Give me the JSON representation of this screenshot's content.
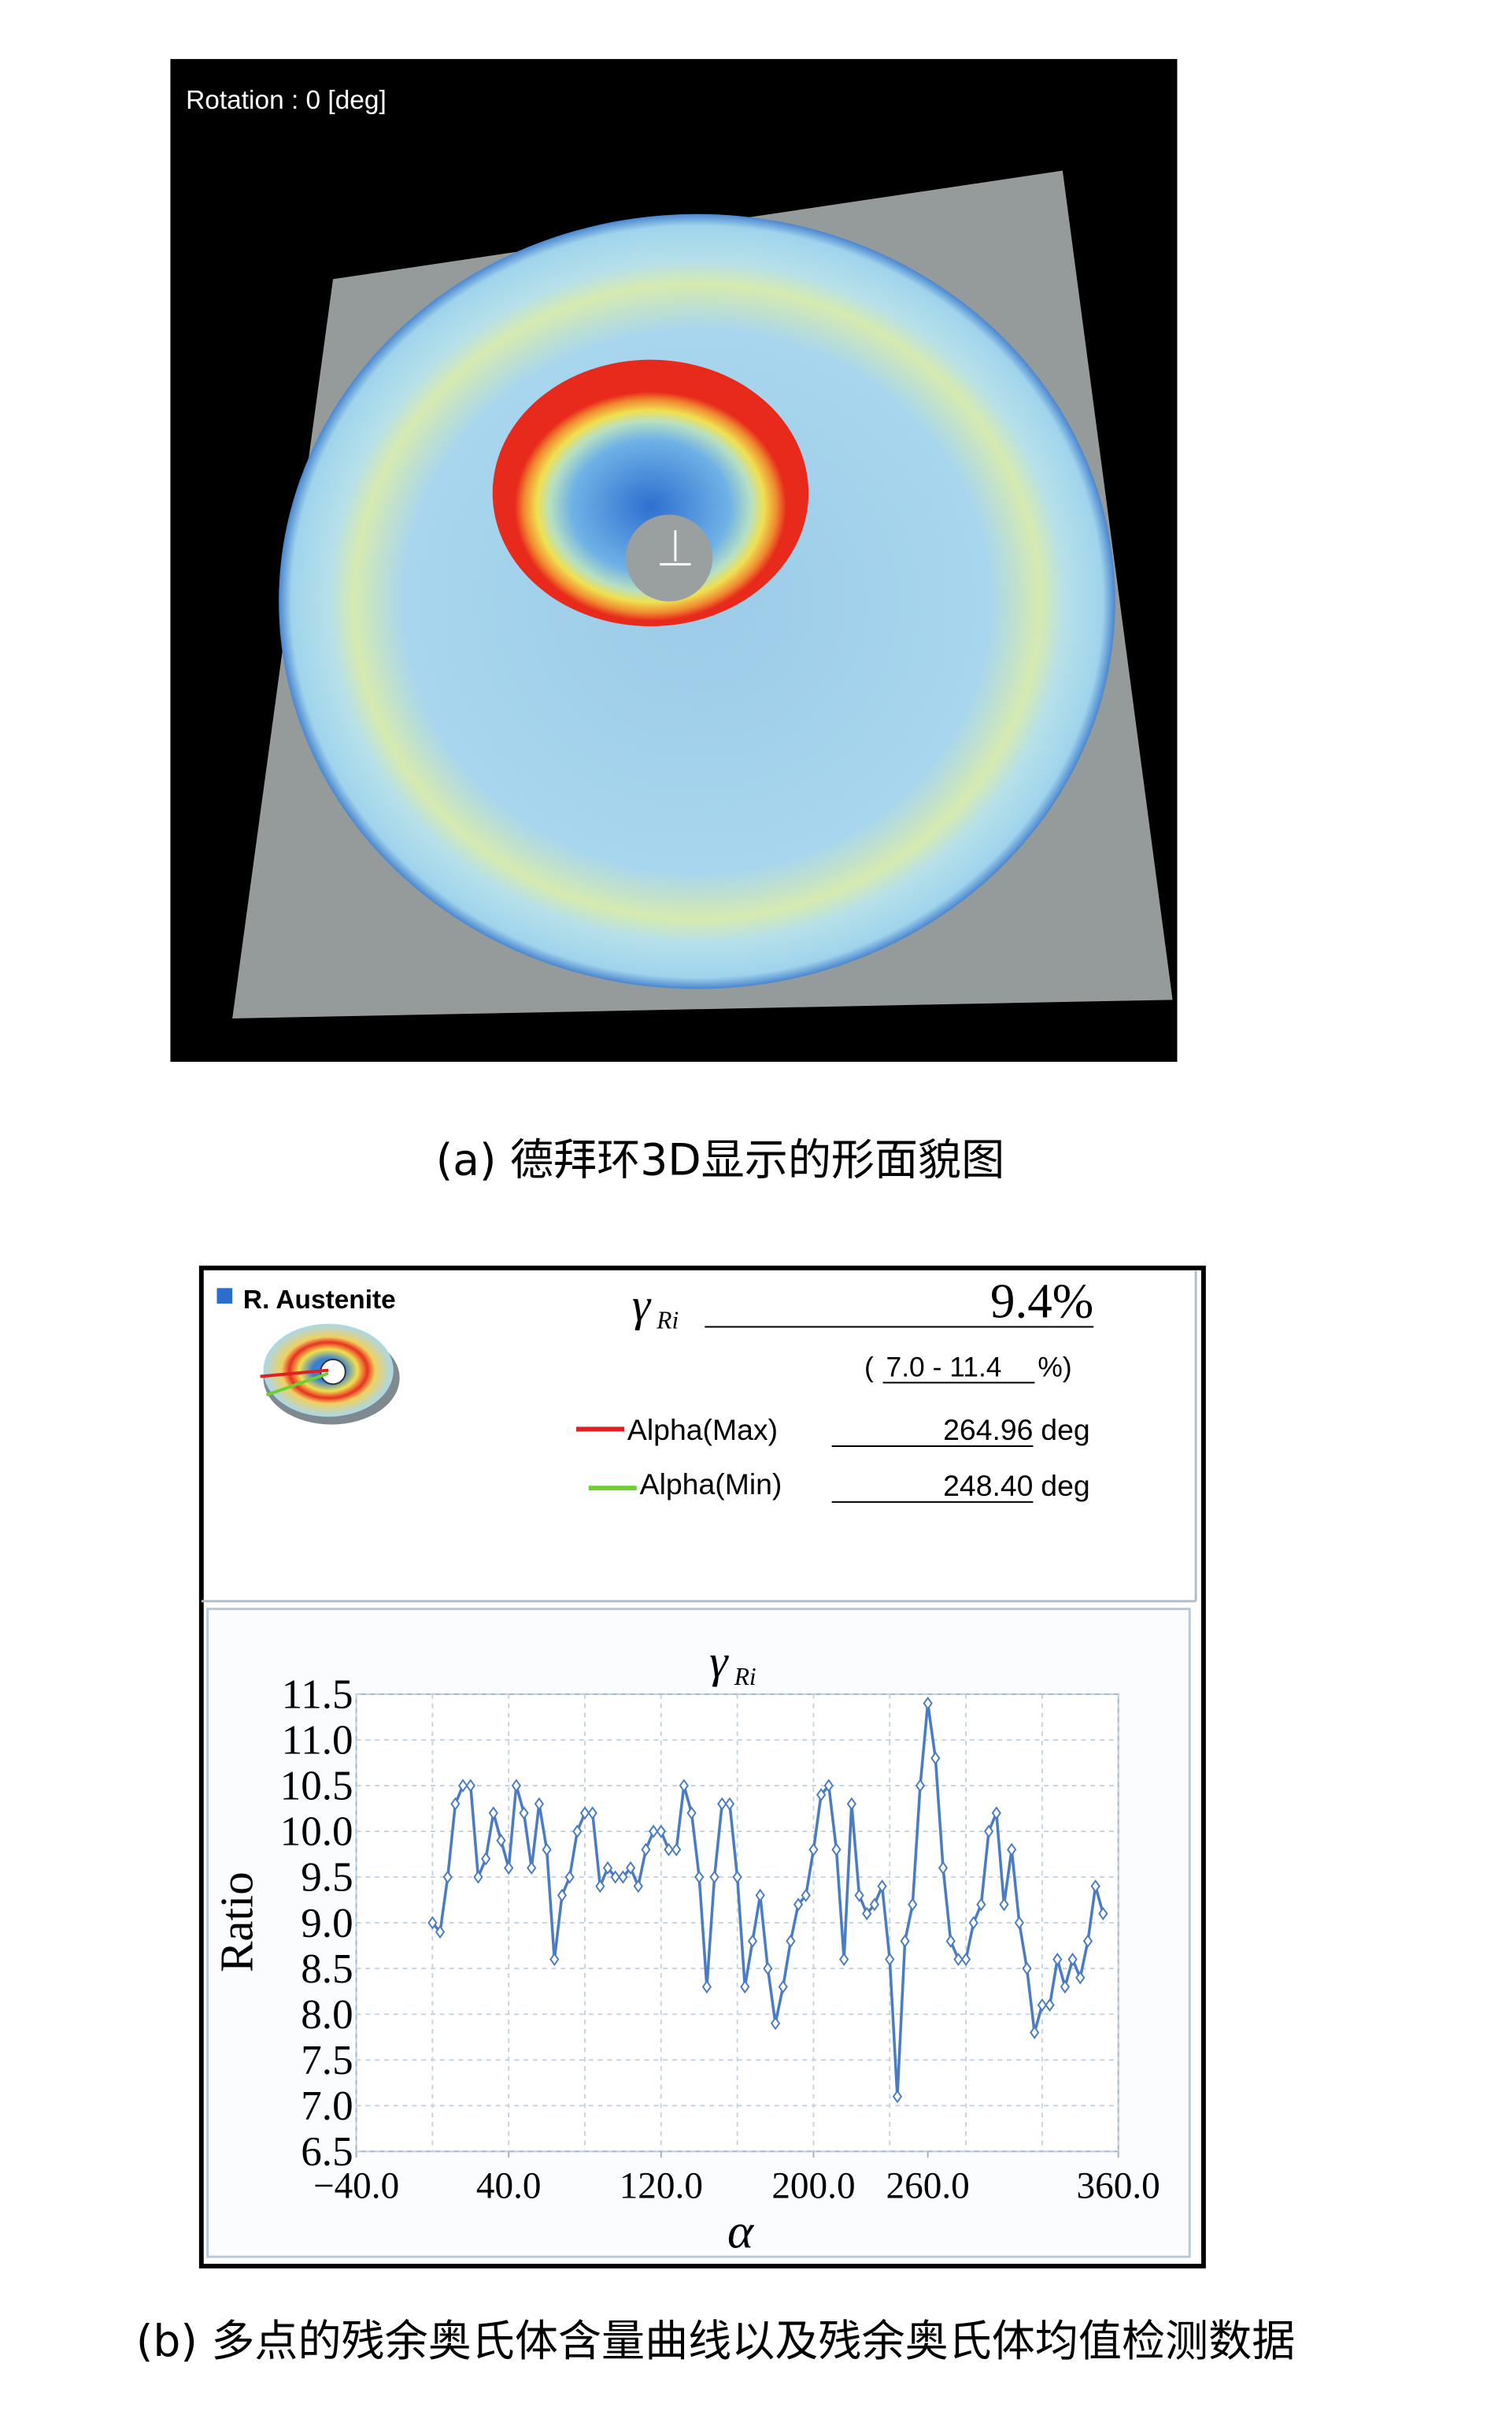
{
  "panel_a": {
    "overlay": "Rotation : 0 [deg]",
    "caption": "(a) 德拜环3D显示的形面貌图"
  },
  "panel_b": {
    "legend": "R. Austenite",
    "symbol": "γ",
    "symbol_subscript": "Ri",
    "mean_value": "9.4%",
    "range_open": "(",
    "range": "7.0 - 11.4",
    "range_close": "%)",
    "alpha_max_label": "Alpha(Max)",
    "alpha_max_value": "264.96",
    "alpha_min_label": "Alpha(Min)",
    "alpha_min_value": "248.40",
    "unit": "deg",
    "caption": "(b) 多点的残余奥氏体含量曲线以及残余奥氏体均值检测数据"
  },
  "chart_data": {
    "type": "line",
    "title": "γ",
    "title_subscript": "Ri",
    "x_label": "α",
    "y_label": "Ratio",
    "xlim": [
      -40,
      360
    ],
    "ylim": [
      6.5,
      11.5
    ],
    "xticks": [
      {
        "value": -40,
        "label": "−40.0"
      },
      {
        "value": 40,
        "label": "40.0"
      },
      {
        "value": 120,
        "label": "120.0"
      },
      {
        "value": 200,
        "label": "200.0"
      },
      {
        "value": 260,
        "label": "260.0"
      },
      {
        "value": 360,
        "label": "360.0"
      }
    ],
    "xgrid": [
      -40,
      0,
      40,
      80,
      120,
      160,
      200,
      240,
      280,
      320,
      360
    ],
    "yticks": [
      6.5,
      {
        "value": 7,
        "label": "7.0"
      },
      7.5,
      {
        "value": 8,
        "label": "8.0"
      },
      8.5,
      {
        "value": 9,
        "label": "9.0"
      },
      9.5,
      {
        "value": 10,
        "label": "10.0"
      },
      10.5,
      {
        "value": 11,
        "label": "11.0"
      },
      11.5
    ],
    "grid": true,
    "series": [
      {
        "name": "γRi",
        "color": "#4a7cc4",
        "x": [
          0,
          4,
          8,
          12,
          16,
          20,
          24,
          28,
          32,
          36,
          40,
          44,
          48,
          52,
          56,
          60,
          64,
          68,
          72,
          76,
          80,
          84,
          88,
          92,
          96,
          100,
          104,
          108,
          112,
          116,
          120,
          124,
          128,
          132,
          136,
          140,
          144,
          148,
          152,
          156,
          160,
          164,
          168,
          172,
          176,
          180,
          184,
          188,
          192,
          196,
          200,
          204,
          208,
          212,
          216,
          220,
          224,
          228,
          232,
          236,
          240,
          244,
          248,
          252,
          256,
          260,
          264,
          268,
          272,
          276,
          280,
          284,
          288,
          292,
          296,
          300,
          304,
          308,
          312,
          316,
          320,
          324,
          328,
          332,
          336,
          340,
          344,
          348,
          352
        ],
        "values": [
          9.0,
          8.9,
          9.5,
          10.3,
          10.5,
          10.5,
          9.5,
          9.7,
          10.2,
          9.9,
          9.6,
          10.5,
          10.2,
          9.6,
          10.3,
          9.8,
          8.6,
          9.3,
          9.5,
          10.0,
          10.2,
          10.2,
          9.4,
          9.6,
          9.5,
          9.5,
          9.6,
          9.4,
          9.8,
          10.0,
          10.0,
          9.8,
          9.8,
          10.5,
          10.2,
          9.5,
          8.3,
          9.5,
          10.3,
          10.3,
          9.5,
          8.3,
          8.8,
          9.3,
          8.5,
          7.9,
          8.3,
          8.8,
          9.2,
          9.3,
          9.8,
          10.4,
          10.5,
          9.8,
          8.6,
          10.3,
          9.3,
          9.1,
          9.2,
          9.4,
          8.6,
          7.1,
          8.8,
          9.2,
          10.5,
          11.4,
          10.8,
          9.6,
          8.8,
          8.6,
          8.6,
          9.0,
          9.2,
          10.0,
          10.2,
          9.2,
          9.8,
          9.0,
          8.5,
          7.8,
          8.1,
          8.1,
          8.6,
          8.3,
          8.6,
          8.4,
          8.8,
          9.4,
          9.1
        ]
      }
    ]
  }
}
